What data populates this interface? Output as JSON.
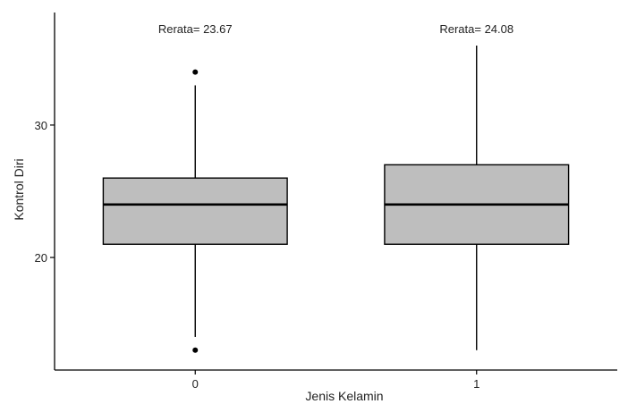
{
  "chart_data": {
    "type": "boxplot",
    "title": "",
    "xlabel": "Jenis Kelamin",
    "ylabel": "Kontrol Diri",
    "ylim": [
      11.5,
      38.5
    ],
    "yticks": [
      20,
      30
    ],
    "grid": false,
    "categories": [
      "0",
      "1"
    ],
    "boxes": [
      {
        "category": "0",
        "q1": 21,
        "median": 24,
        "q3": 26,
        "whisker_low": 14,
        "whisker_high": 33,
        "outliers": [
          34,
          13
        ],
        "annotation": "Rerata= 23.67"
      },
      {
        "category": "1",
        "q1": 21,
        "median": 24,
        "q3": 27,
        "whisker_low": 13,
        "whisker_high": 36,
        "outliers": [],
        "annotation": "Rerata= 24.08"
      }
    ],
    "colors": {
      "box_fill": "#bebebe",
      "line": "#000000"
    }
  }
}
